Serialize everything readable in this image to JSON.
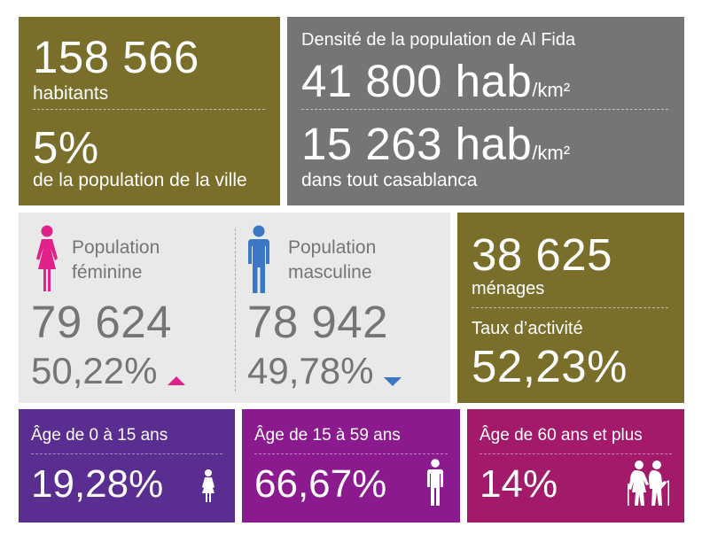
{
  "population": {
    "count": "158 566",
    "count_label": "habitants",
    "share": "5%",
    "share_label": "de la population de la ville"
  },
  "density": {
    "title": "Densité de la population de Al Fida",
    "local_value": "41 800 hab",
    "local_unit": "/km²",
    "city_value": "15 263 hab",
    "city_unit": "/km²",
    "city_label": "dans tout casablanca"
  },
  "gender": {
    "female": {
      "label_line1": "Population",
      "label_line2": "féminine",
      "count": "79 624",
      "percent": "50,22%",
      "color": "#e0218a",
      "trend": "up"
    },
    "male": {
      "label_line1": "Population",
      "label_line2": "masculine",
      "count": "78 942",
      "percent": "49,78%",
      "color": "#3a78c6",
      "trend": "down"
    }
  },
  "households": {
    "count": "38 625",
    "count_label": "ménages",
    "activity_label": "Taux d’activité",
    "activity_rate": "52,23%"
  },
  "age_groups": [
    {
      "label": "Âge de 0 à 15 ans",
      "percent": "19,28%",
      "color": "#5a2e91",
      "icon": "child-icon"
    },
    {
      "label": "Âge de 15 à 59 ans",
      "percent": "66,67%",
      "color": "#8c1a8f",
      "icon": "adult-icon"
    },
    {
      "label": "Âge de 60 ans et plus",
      "percent": "14%",
      "color": "#a31a6a",
      "icon": "elderly-couple-icon"
    }
  ],
  "colors": {
    "olive": "#7a6e2b",
    "gray": "#757575",
    "light_gray": "#e9e9e9",
    "text_gray": "#757575"
  }
}
